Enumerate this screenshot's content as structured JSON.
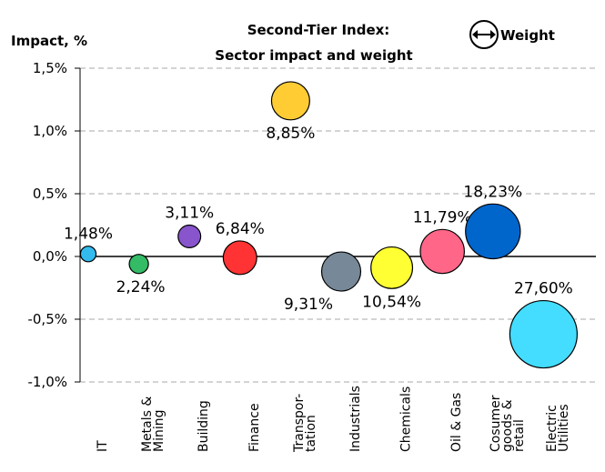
{
  "chart_data": {
    "type": "bubble",
    "title": "Second-Tier Index:",
    "subtitle": "Sector impact and weight",
    "y_label": "Impact, %",
    "legend_label": "Weight",
    "categories": [
      [
        "IT"
      ],
      [
        "Metals &",
        "Mining"
      ],
      [
        "Building"
      ],
      [
        "Finance"
      ],
      [
        "Transpor-",
        "tation"
      ],
      [
        "Industrials"
      ],
      [
        "Chemicals"
      ],
      [
        "Oil & Gas"
      ],
      [
        "Cosumer",
        "goods &",
        "retail"
      ],
      [
        "Electric",
        "Utilities"
      ]
    ],
    "values": [
      0.02,
      -0.06,
      0.16,
      -0.01,
      1.24,
      -0.12,
      -0.09,
      0.04,
      0.2,
      -0.62
    ],
    "sizes": [
      1.48,
      2.24,
      3.11,
      6.84,
      8.85,
      9.31,
      10.54,
      11.79,
      18.23,
      27.6
    ],
    "size_labels": [
      "1,48%",
      "2,24%",
      "3,11%",
      "6,84%",
      "8,85%",
      "9,31%",
      "10,54%",
      "11,79%",
      "18,23%",
      "27,60%"
    ],
    "colors": [
      "#33bbee",
      "#33bb66",
      "#8855cc",
      "#ff3333",
      "#ffcc33",
      "#778899",
      "#ffff33",
      "#ff6688",
      "#0066cc",
      "#44ddff"
    ],
    "ylim": [
      -1.0,
      1.5
    ],
    "yticks": [
      {
        "value": -1.0,
        "label": "-1,0%"
      },
      {
        "value": -0.5,
        "label": "-0,5%"
      },
      {
        "value": 0,
        "label": "0,0%"
      },
      {
        "value": 0.5,
        "label": "0,5%"
      },
      {
        "value": 1.0,
        "label": "1,0%"
      },
      {
        "value": 1.5,
        "label": "1,5%"
      }
    ],
    "grid": true
  }
}
